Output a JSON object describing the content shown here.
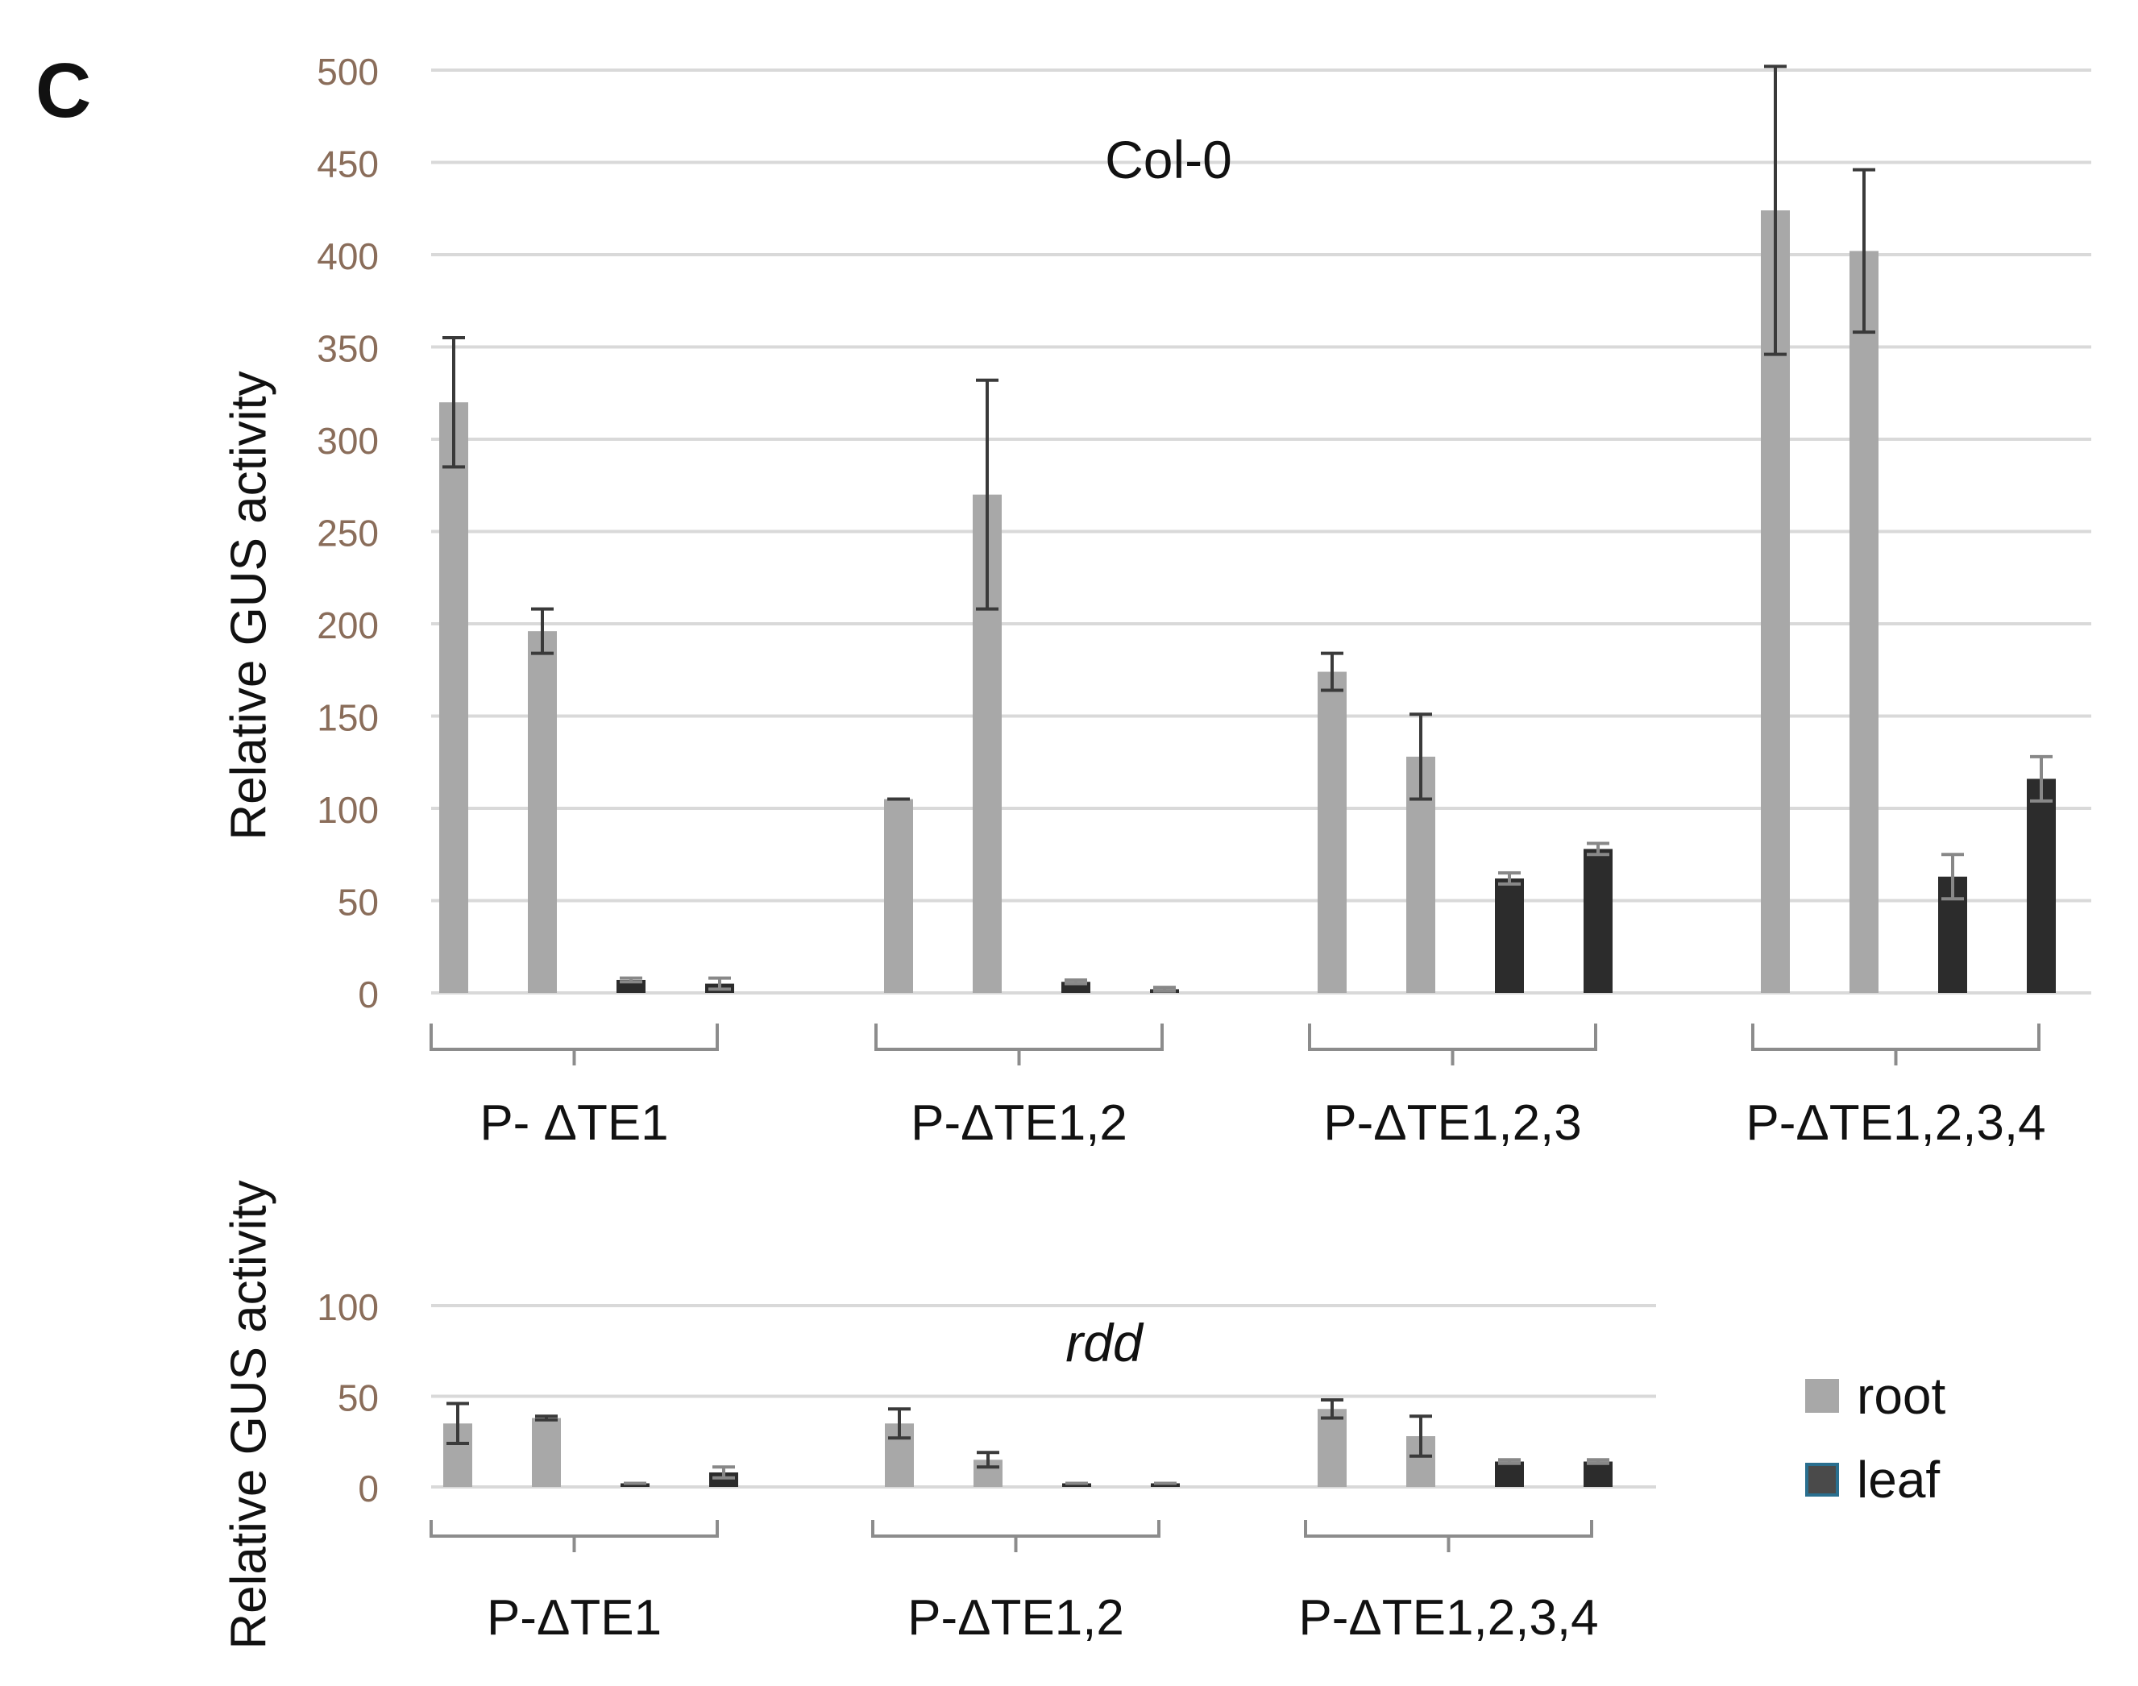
{
  "panel_label": "C",
  "legend": {
    "items": [
      {
        "label": "root",
        "color": "#a8a8a8",
        "border": "#a8a8a8"
      },
      {
        "label": "leaf",
        "color": "#3c3c3c",
        "border": "#2a6f8f"
      }
    ]
  },
  "colors": {
    "root": "#a8a8a8",
    "leaf": "#2c2c2c",
    "gridline": "#d9d9d9",
    "tick": "#8a6d5a",
    "error": "#3a3a3a",
    "bracket": "#8c8c8c"
  },
  "chart_data": [
    {
      "type": "bar",
      "title": "Col-0",
      "title_italic": false,
      "ylabel": "Relative GUS activity",
      "xlabel": "",
      "ylim": [
        0,
        500
      ],
      "yticks": [
        0,
        50,
        100,
        150,
        200,
        250,
        300,
        350,
        400,
        450,
        500
      ],
      "grid": true,
      "groups": [
        "P- ΔTE1",
        "P-ΔTE1,2",
        "P-ΔTE1,2,3",
        "P-ΔTE1,2,3,4"
      ],
      "bar_series": [
        "root",
        "root",
        "leaf",
        "leaf"
      ],
      "values": [
        [
          320,
          196,
          7,
          5
        ],
        [
          105,
          270,
          6,
          2
        ],
        [
          174,
          128,
          62,
          78
        ],
        [
          424,
          402,
          63,
          116
        ]
      ],
      "errors": [
        [
          35,
          12,
          1,
          3
        ],
        [
          0,
          62,
          1,
          1
        ],
        [
          10,
          23,
          3,
          3
        ],
        [
          78,
          44,
          12,
          12
        ]
      ]
    },
    {
      "type": "bar",
      "title": "rdd",
      "title_italic": true,
      "ylabel": "Relative GUS activity",
      "xlabel": "",
      "ylim": [
        0,
        100
      ],
      "yticks": [
        0,
        50,
        100
      ],
      "grid": true,
      "groups": [
        "P-ΔTE1",
        "P-ΔTE1,2",
        "P-ΔTE1,2,3,4"
      ],
      "bar_series": [
        "root",
        "root",
        "leaf",
        "leaf"
      ],
      "values": [
        [
          35,
          38,
          2,
          8
        ],
        [
          35,
          15,
          2,
          2
        ],
        [
          43,
          28,
          14,
          14
        ]
      ],
      "errors": [
        [
          11,
          1,
          0,
          3
        ],
        [
          8,
          4,
          0,
          0
        ],
        [
          5,
          11,
          1,
          1
        ]
      ]
    }
  ]
}
